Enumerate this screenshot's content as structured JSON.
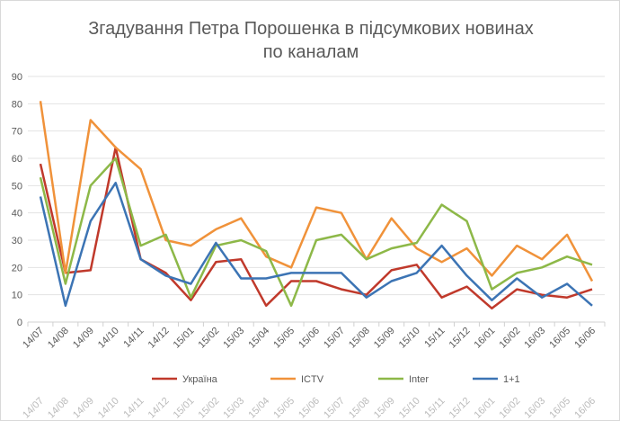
{
  "chart_data": {
    "type": "line",
    "title": "Згадування Петра Порошенка в підсумкових новинах по каналам",
    "title_lines": [
      "Згадування Петра Порошенка в підсумкових новинах",
      "по каналам"
    ],
    "xlabel": "",
    "ylabel": "",
    "ylim": [
      0,
      90
    ],
    "yticks": [
      0,
      10,
      20,
      30,
      40,
      50,
      60,
      70,
      80,
      90
    ],
    "grid": true,
    "legend_position": "bottom",
    "categories": [
      "14/07",
      "14/08",
      "14/09",
      "14/10",
      "14/11",
      "14/12",
      "15/01",
      "15/02",
      "15/03",
      "15/04",
      "15/05",
      "15/06",
      "15/07",
      "15/08",
      "15/09",
      "15/10",
      "15/11",
      "15/12",
      "16/01",
      "16/02",
      "16/03",
      "16/05",
      "16/06"
    ],
    "series": [
      {
        "name": "Україна",
        "color": "#c0392b",
        "values": [
          58,
          18,
          19,
          64,
          23,
          18,
          8,
          22,
          23,
          6,
          15,
          15,
          12,
          10,
          19,
          21,
          9,
          13,
          5,
          12,
          10,
          9,
          12
        ]
      },
      {
        "name": "ICTV",
        "color": "#f0923a",
        "values": [
          81,
          18,
          74,
          64,
          56,
          30,
          28,
          34,
          38,
          24,
          20,
          42,
          40,
          23,
          38,
          27,
          22,
          27,
          17,
          28,
          23,
          32,
          15
        ]
      },
      {
        "name": "Inter",
        "color": "#8db848",
        "values": [
          53,
          14,
          50,
          60,
          28,
          32,
          9,
          28,
          30,
          26,
          6,
          30,
          32,
          23,
          27,
          29,
          43,
          37,
          12,
          18,
          20,
          24,
          21
        ]
      },
      {
        "name": "1+1",
        "color": "#3c74b4",
        "values": [
          46,
          6,
          37,
          51,
          23,
          17,
          14,
          29,
          16,
          16,
          18,
          18,
          18,
          9,
          15,
          18,
          28,
          17,
          8,
          16,
          9,
          14,
          6
        ]
      }
    ]
  }
}
